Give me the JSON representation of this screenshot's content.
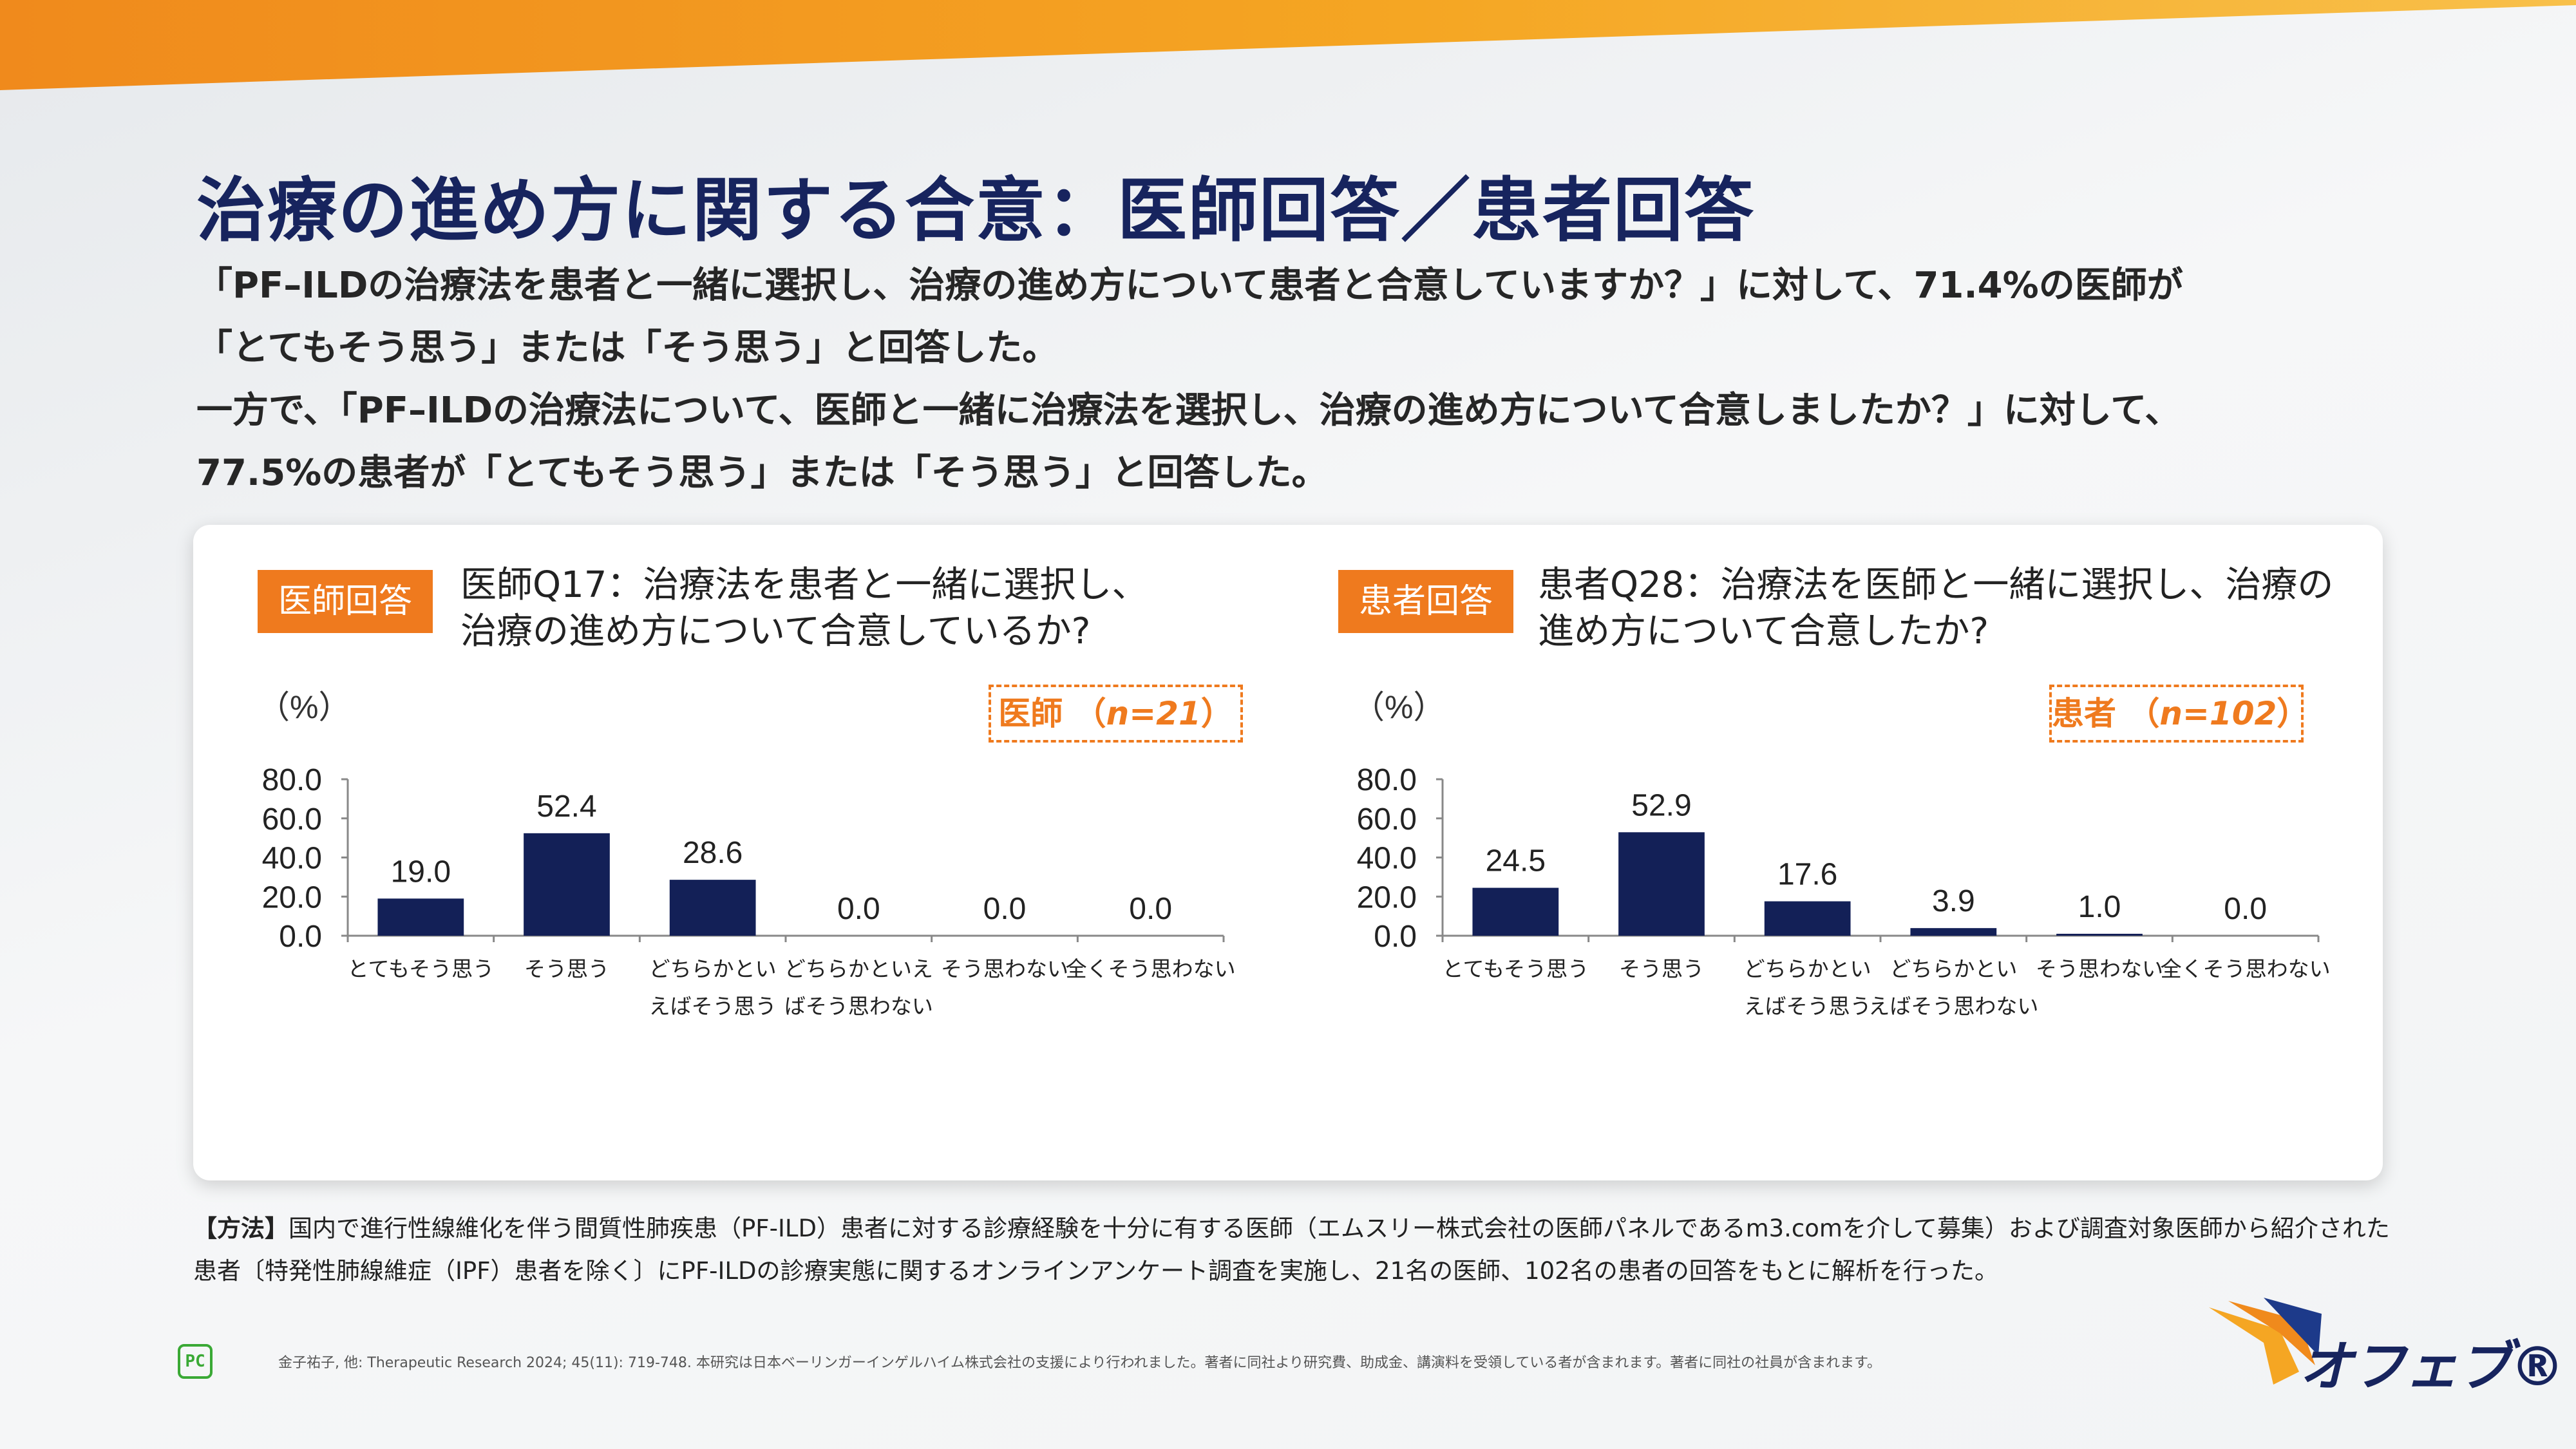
{
  "colors": {
    "accent": "#ef7a1e",
    "navy": "#17245e",
    "bar": "#132057"
  },
  "page": {
    "title": "治療の進め方に関する合意：医師回答／患者回答",
    "lead": [
      "「PF–ILDの治療法を患者と一緒に選択し、治療の進め方について患者と合意していますか？」に対して、71.4%の医師が",
      "「とてもそう思う」または「そう思う」と回答した。",
      "一方で、「PF–ILDの治療法について、医師と一緒に治療法を選択し、治療の進め方について合意しましたか？」に対して、",
      "77.5%の患者が「とてもそう思う」または「そう思う」と回答した。"
    ]
  },
  "doctor": {
    "tag": "医師回答",
    "question": [
      "医師Q17：治療法を患者と一緒に選択し、",
      "治療の進め方について合意しているか?"
    ],
    "n_label": "医師",
    "n_value": "n=21",
    "paren_open": "（",
    "paren_close": "）"
  },
  "patient": {
    "tag": "患者回答",
    "question": [
      "患者Q28：治療法を医師と一緒に選択し、治療の",
      "進め方について合意したか?"
    ],
    "n_label": "患者",
    "n_value": "n=102",
    "paren_open": "（",
    "paren_close": "）"
  },
  "chart_data": [
    {
      "type": "bar",
      "title": "医師Q17：治療法を患者と一緒に選択し、治療の進め方について合意しているか?",
      "ylabel": "（%）",
      "ylim": [
        0,
        80
      ],
      "yticks": [
        "0.0",
        "20.0",
        "40.0",
        "60.0",
        "80.0"
      ],
      "categories": [
        [
          "とてもそう思う"
        ],
        [
          "そう思う"
        ],
        [
          "どちらかとい",
          "えばそう思う"
        ],
        [
          "どちらかといえ",
          "ばそう思わない"
        ],
        [
          "そう思わない"
        ],
        [
          "全くそう思わない"
        ]
      ],
      "values": [
        19.0,
        52.4,
        28.6,
        0.0,
        0.0,
        0.0
      ],
      "value_labels": [
        "19.0",
        "52.4",
        "28.6",
        "0.0",
        "0.0",
        "0.0"
      ]
    },
    {
      "type": "bar",
      "title": "患者Q28：治療法を医師と一緒に選択し、治療の進め方について合意したか?",
      "ylabel": "（%）",
      "ylim": [
        0,
        80
      ],
      "yticks": [
        "0.0",
        "20.0",
        "40.0",
        "60.0",
        "80.0"
      ],
      "categories": [
        [
          "とてもそう思う"
        ],
        [
          "そう思う"
        ],
        [
          "どちらかとい",
          "えばそう思う"
        ],
        [
          "どちらかとい",
          "えばそう思わない"
        ],
        [
          "そう思わない"
        ],
        [
          "全くそう思わない"
        ]
      ],
      "values": [
        24.5,
        52.9,
        17.6,
        3.9,
        1.0,
        0.0
      ],
      "value_labels": [
        "24.5",
        "52.9",
        "17.6",
        "3.9",
        "1.0",
        "0.0"
      ]
    }
  ],
  "method": {
    "label": "【方法】",
    "line1": "国内で進行性線維化を伴う間質性肺疾患（PF-ILD）患者に対する診療経験を十分に有する医師（エムスリー株式会社の医師パネルであるm3.comを介して募集）および調査対象医師から紹介された",
    "line2": "患者〔特発性肺線維症（IPF）患者を除く〕にPF-ILDの診療実態に関するオンラインアンケート調査を実施し、21名の医師、102名の患者の回答をもとに解析を行った。"
  },
  "footer": {
    "pc_logo": "PC",
    "citation": "金子祐子, 他: Therapeutic Research 2024; 45(11): 719-748.  本研究は日本ベーリンガーインゲルハイム株式会社の支援により行われました。著者に同社より研究費、助成金、講演料を受領している者が含まれます。著者に同社の社員が含まれます。",
    "brand": "オフェブ®"
  }
}
